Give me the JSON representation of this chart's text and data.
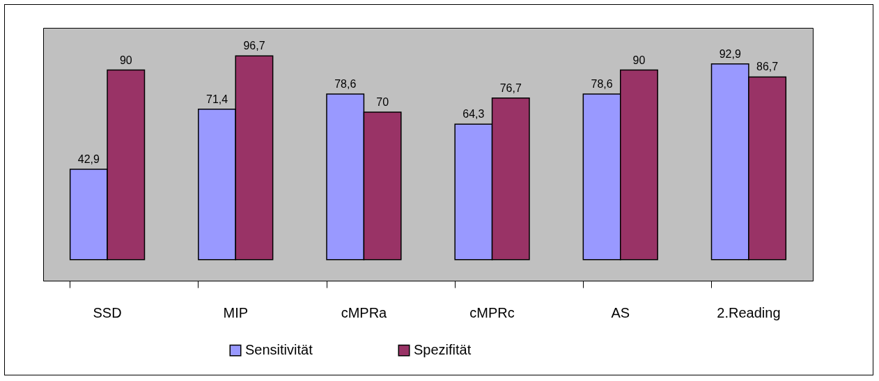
{
  "chart_data": {
    "type": "bar",
    "categories": [
      "SSD",
      "MIP",
      "cMPRa",
      "cMPRc",
      "AS",
      "2.Reading"
    ],
    "series": [
      {
        "name": "Sensitivität",
        "color": "#9999ff",
        "values": [
          42.9,
          71.4,
          78.6,
          64.3,
          78.6,
          92.9
        ],
        "value_labels": [
          "42,9",
          "71,4",
          "78,6",
          "64,3",
          "78,6",
          "92,9"
        ]
      },
      {
        "name": "Spezifität",
        "color": "#993366",
        "values": [
          90,
          96.7,
          70,
          76.7,
          90,
          86.7
        ],
        "value_labels": [
          "90",
          "96,7",
          "70",
          "76,7",
          "90",
          "86,7"
        ]
      }
    ],
    "legend": "bottom",
    "tick_labels": "x"
  }
}
